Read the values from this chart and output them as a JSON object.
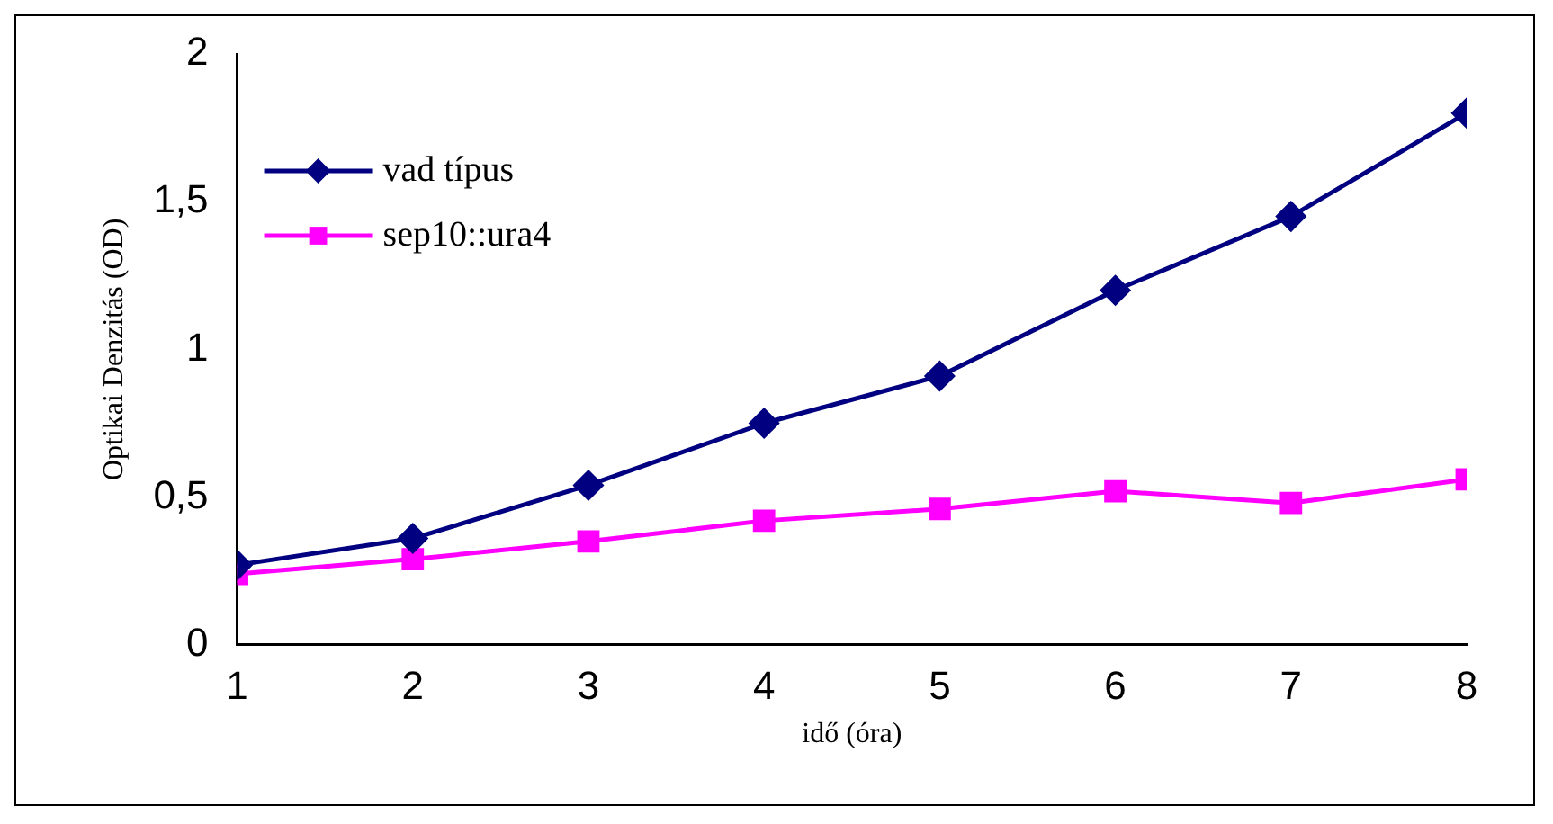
{
  "chart_data": {
    "type": "line",
    "xlabel": "idő (óra)",
    "ylabel": "Optikai Denzitás (OD)",
    "x": [
      1,
      2,
      3,
      4,
      5,
      6,
      7,
      8
    ],
    "xlim": [
      1,
      8
    ],
    "xticks": [
      1,
      2,
      3,
      4,
      5,
      6,
      7,
      8
    ],
    "ylim": [
      0,
      2
    ],
    "yticks": [
      0,
      {
        "value": 0.5,
        "label": "0,5"
      },
      1,
      {
        "value": 1.5,
        "label": "1,5"
      },
      2
    ],
    "grid": false,
    "legend": "top left",
    "line_style": "solid",
    "series": [
      {
        "name": "vad típus",
        "color": "#000080",
        "marker": "diamond",
        "values": [
          0.27,
          0.36,
          0.54,
          0.75,
          0.91,
          1.2,
          1.45,
          1.8
        ]
      },
      {
        "name": "sep10::ura4",
        "color": "#ff00ff",
        "marker": "square",
        "values": [
          0.24,
          0.29,
          0.35,
          0.42,
          0.46,
          0.52,
          0.48,
          0.56
        ]
      }
    ]
  }
}
